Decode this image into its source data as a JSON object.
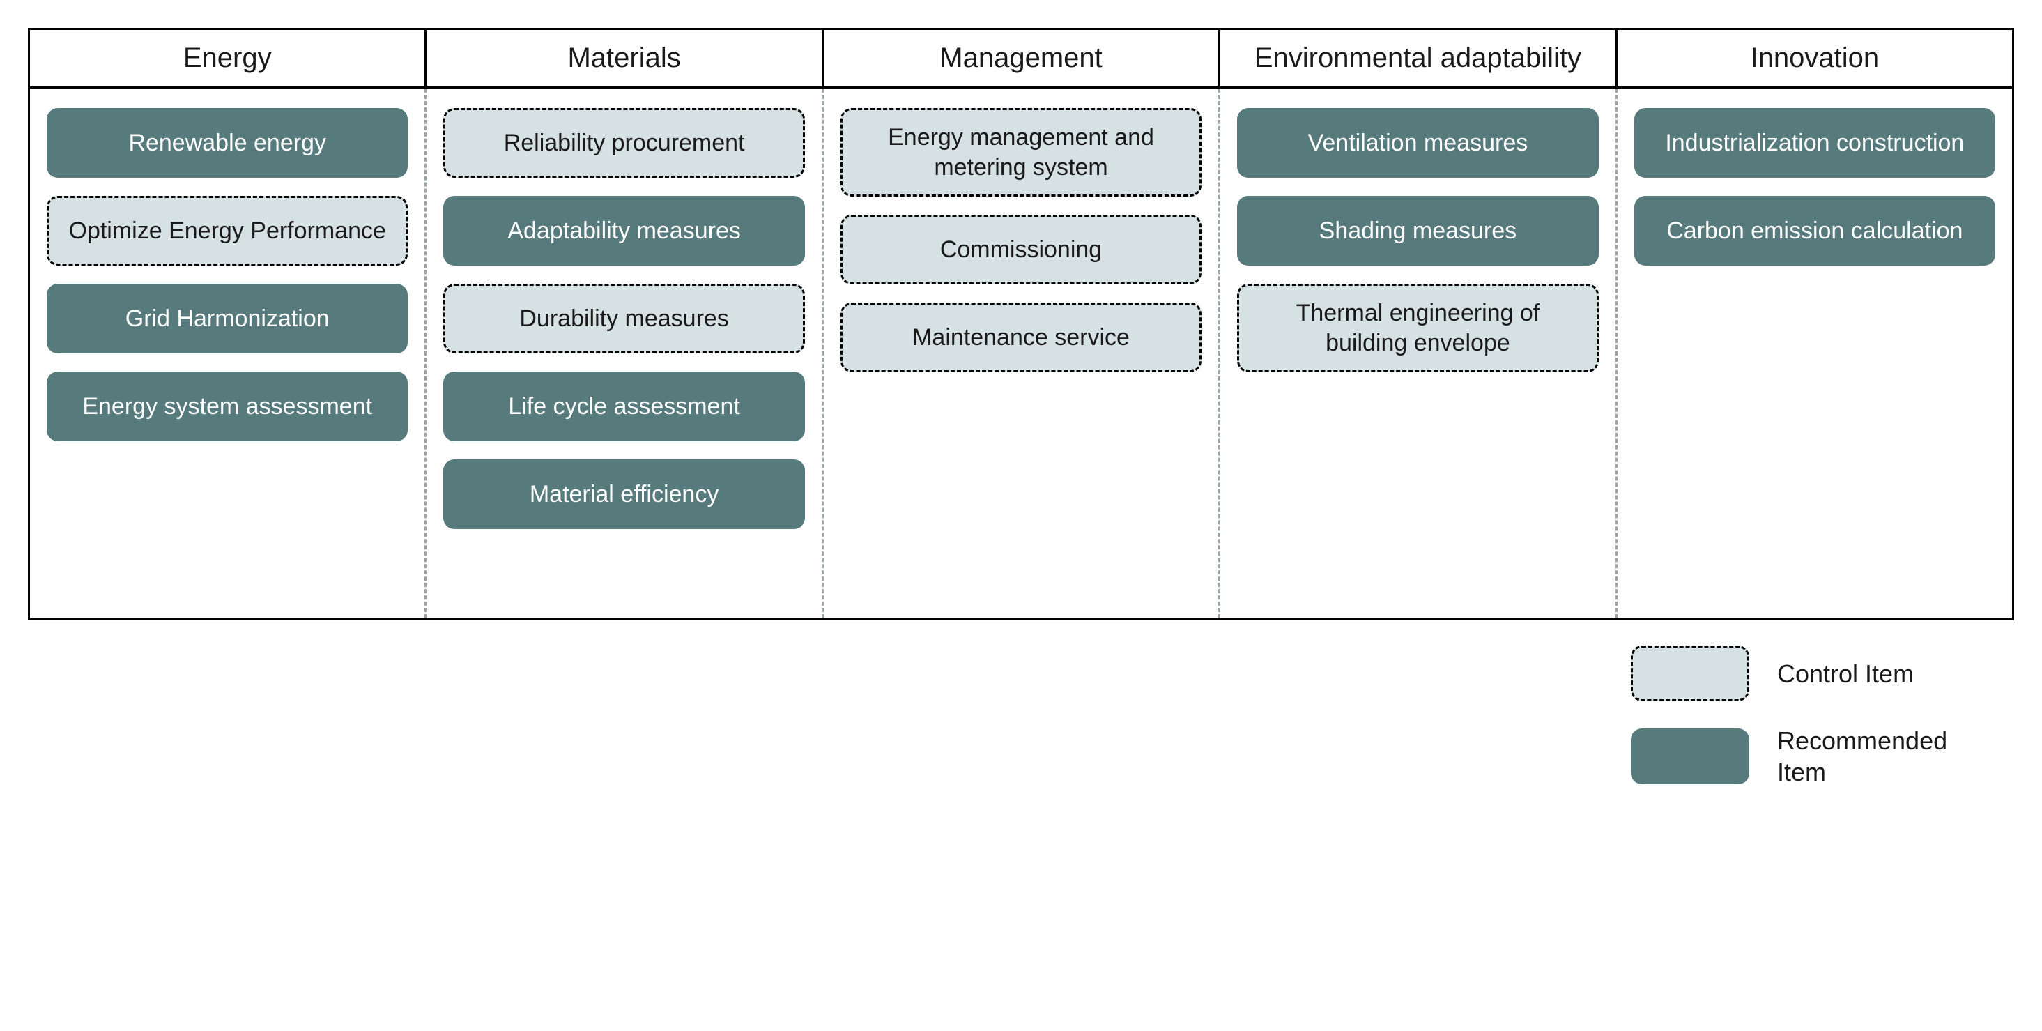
{
  "colors": {
    "recommended_fill": "#577a7d",
    "control_fill": "#d6e1e4",
    "control_border": "#000000",
    "text_dark": "#1a1a1a",
    "text_light": "#ffffff",
    "table_border": "#000000",
    "col_divider": "#9aa4ac",
    "background": "#ffffff"
  },
  "typography": {
    "header_fontsize": 40,
    "item_fontsize": 34,
    "legend_fontsize": 36,
    "font_family": "Arial, Helvetica, sans-serif"
  },
  "layout": {
    "item_border_radius": 16,
    "item_min_height": 100,
    "col_gap": 26,
    "columns": 5
  },
  "categories": [
    {
      "header": "Energy",
      "items": [
        {
          "label": "Renewable energy",
          "type": "recommended"
        },
        {
          "label": "Optimize Energy Performance",
          "type": "control"
        },
        {
          "label": "Grid Harmonization",
          "type": "recommended"
        },
        {
          "label": "Energy system assessment",
          "type": "recommended"
        }
      ]
    },
    {
      "header": "Materials",
      "items": [
        {
          "label": "Reliability procurement",
          "type": "control"
        },
        {
          "label": "Adaptability measures",
          "type": "recommended"
        },
        {
          "label": "Durability measures",
          "type": "control"
        },
        {
          "label": "Life cycle assessment",
          "type": "recommended"
        },
        {
          "label": "Material efficiency",
          "type": "recommended"
        }
      ]
    },
    {
      "header": "Management",
      "items": [
        {
          "label": "Energy management and metering system",
          "type": "control"
        },
        {
          "label": "Commissioning",
          "type": "control"
        },
        {
          "label": "Maintenance service",
          "type": "control"
        }
      ]
    },
    {
      "header": "Environmental adaptability",
      "items": [
        {
          "label": "Ventilation measures",
          "type": "recommended"
        },
        {
          "label": "Shading measures",
          "type": "recommended"
        },
        {
          "label": "Thermal engineering of building envelope",
          "type": "control"
        }
      ]
    },
    {
      "header": "Innovation",
      "items": [
        {
          "label": "Industrialization construction",
          "type": "recommended"
        },
        {
          "label": "Carbon emission calculation",
          "type": "recommended"
        }
      ]
    }
  ],
  "legend": {
    "control_label": "Control Item",
    "recommended_label": "Recommended Item"
  }
}
